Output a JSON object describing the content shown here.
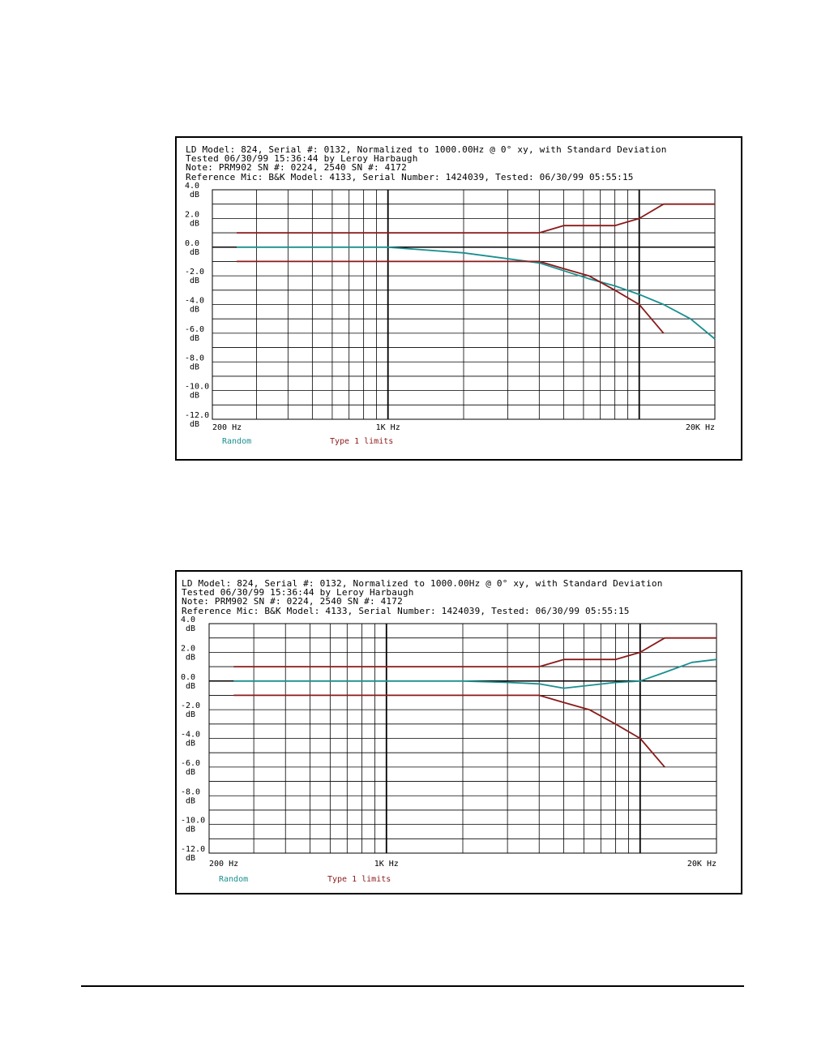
{
  "colors": {
    "random": "#1a8f8f",
    "limits": "#8b1a1a",
    "grid": "#000000"
  },
  "chart_data": [
    {
      "type": "line",
      "header": [
        "LD Model: 824, Serial #: 0132, Normalized to 1000.00Hz @ 0° xy, with Standard Deviation",
        "Tested 06/30/99 15:36:44 by Leroy Harbaugh",
        "Note: PRM902 SN #: 0224, 2540 SN #: 4172",
        "Reference Mic: B&K Model: 4133, Serial Number: 1424039, Tested: 06/30/99 05:55:15"
      ],
      "x_scale": "log",
      "xlim": [
        200,
        20000
      ],
      "x_tick_labels": [
        "200 Hz",
        "1K Hz",
        "20K Hz"
      ],
      "ylim": [
        -12,
        4
      ],
      "y_tick_labels": [
        "4.0",
        "2.0",
        "0.0",
        "-2.0",
        "-4.0",
        "-6.0",
        "-8.0",
        "-10.0",
        "-12.0"
      ],
      "y_unit": "dB",
      "legend": [
        "Random",
        "Type 1 limits"
      ],
      "series": [
        {
          "name": "Random",
          "x": [
            250,
            500,
            1000,
            2000,
            4000,
            6300,
            8000,
            10000,
            12500,
            16000,
            20000
          ],
          "y": [
            0.0,
            0.0,
            0.0,
            -0.4,
            -1.1,
            -2.2,
            -2.7,
            -3.3,
            -4.0,
            -5.0,
            -6.4
          ]
        },
        {
          "name": "Type 1 limits upper",
          "x": [
            250,
            4000,
            5000,
            8000,
            10000,
            12500,
            20000
          ],
          "y": [
            1.0,
            1.0,
            1.5,
            1.5,
            2.0,
            3.0,
            3.0
          ]
        },
        {
          "name": "Type 1 limits lower",
          "x": [
            250,
            4000,
            5000,
            6300,
            8000,
            10000,
            12500
          ],
          "y": [
            -1.0,
            -1.0,
            -1.5,
            -2.0,
            -3.0,
            -4.0,
            -6.0
          ]
        }
      ]
    },
    {
      "type": "line",
      "header": [
        "LD Model: 824, Serial #: 0132, Normalized to 1000.00Hz @ 0° xy, with Standard Deviation",
        "Tested 06/30/99 15:36:44 by Leroy Harbaugh",
        "Note: PRM902 SN #: 0224, 2540 SN #: 4172",
        "Reference Mic: B&K Model: 4133, Serial Number: 1424039, Tested: 06/30/99 05:55:15"
      ],
      "x_scale": "log",
      "xlim": [
        200,
        20000
      ],
      "x_tick_labels": [
        "200 Hz",
        "1K Hz",
        "20K Hz"
      ],
      "ylim": [
        -12,
        4
      ],
      "y_tick_labels": [
        "4.0",
        "2.0",
        "0.0",
        "-2.0",
        "-4.0",
        "-6.0",
        "-8.0",
        "-10.0",
        "-12.0"
      ],
      "y_unit": "dB",
      "legend": [
        "Random",
        "Type 1 limits"
      ],
      "series": [
        {
          "name": "Random",
          "x": [
            250,
            500,
            1000,
            2000,
            3000,
            4000,
            5000,
            6300,
            8000,
            10000,
            12500,
            16000,
            20000
          ],
          "y": [
            0.0,
            0.0,
            0.0,
            0.0,
            -0.1,
            -0.2,
            -0.5,
            -0.3,
            -0.1,
            0.0,
            0.6,
            1.3,
            1.5
          ]
        },
        {
          "name": "Type 1 limits upper",
          "x": [
            250,
            4000,
            5000,
            8000,
            10000,
            12500,
            20000
          ],
          "y": [
            1.0,
            1.0,
            1.5,
            1.5,
            2.0,
            3.0,
            3.0
          ]
        },
        {
          "name": "Type 1 limits lower",
          "x": [
            250,
            4000,
            5000,
            6300,
            8000,
            10000,
            12500
          ],
          "y": [
            -1.0,
            -1.0,
            -1.5,
            -2.0,
            -3.0,
            -4.0,
            -6.0
          ]
        }
      ]
    }
  ]
}
